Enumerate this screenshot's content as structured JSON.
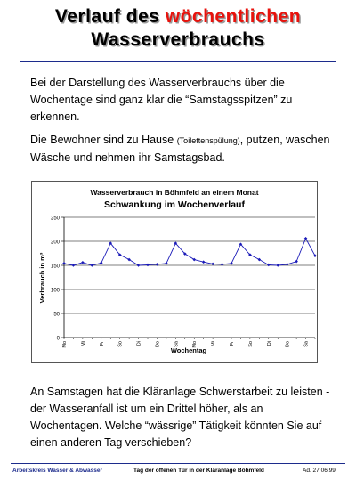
{
  "slide": {
    "title_part1": "Verlauf des ",
    "title_highlight": "wöchentlichen",
    "title_line2": "Wasserverbrauchs",
    "p1": "Bei der Darstellung des Wasserverbrauchs über die Wochentage sind ganz klar die “Samstagsspitzen” zu erkennen.",
    "p2_a": "Die Bewohner sind zu Hause ",
    "p2_small": "(Toilettenspülung)",
    "p2_b": ", putzen, waschen Wäsche und nehmen ihr Samstagsbad.",
    "p3": "An Samstagen hat die Kläranlage Schwerstarbeit zu leisten - der Wasseranfall ist um ein Drittel höher, als an Wochentagen. Welche “wässrige” Tätigkeit könnten Sie auf einen anderen Tag verschieben?"
  },
  "footer": {
    "left": "Arbeitskreis Wasser & Abwasser",
    "center": "Tag der offenen Tür in der Kläranlage Böhmfeld",
    "right": "Ad. 27.06.99"
  },
  "colors": {
    "title_highlight": "#e8120c",
    "rule": "#1c2b8c",
    "series": "#1a1ab8"
  },
  "chart_data": {
    "type": "line",
    "title": "Wasserverbrauch in Böhmfeld an einem Monat",
    "subtitle": "Schwankung im Wochenverlauf",
    "xlabel": "Wochentag",
    "ylabel": "Verbrauch in m³",
    "ylim": [
      0,
      250
    ],
    "yticks": [
      0,
      50,
      100,
      150,
      200,
      250
    ],
    "grid": true,
    "categories": [
      "Mo",
      "Di",
      "Mi",
      "Do",
      "Fr",
      "Sa",
      "So",
      "Mo",
      "Di",
      "Mi",
      "Do",
      "Fr",
      "Sa",
      "So",
      "Mo",
      "Di",
      "Mi",
      "Do",
      "Fr",
      "Sa",
      "So",
      "Mo",
      "Di",
      "Mi",
      "Do",
      "Fr",
      "Sa",
      "So"
    ],
    "tick_labels": [
      "Mo",
      "",
      "Mi",
      "",
      "Fr",
      "",
      "So",
      "",
      "Di",
      "",
      "Do",
      "",
      "Sa",
      "",
      "Mo",
      "",
      "Mi",
      "",
      "Fr",
      "",
      "So",
      "",
      "Di",
      "",
      "Do",
      "",
      "Sa",
      ""
    ],
    "values": [
      154,
      150,
      156,
      150,
      155,
      196,
      172,
      162,
      150,
      151,
      152,
      154,
      196,
      174,
      162,
      157,
      153,
      152,
      154,
      194,
      172,
      162,
      151,
      150,
      152,
      158,
      206,
      170
    ]
  }
}
